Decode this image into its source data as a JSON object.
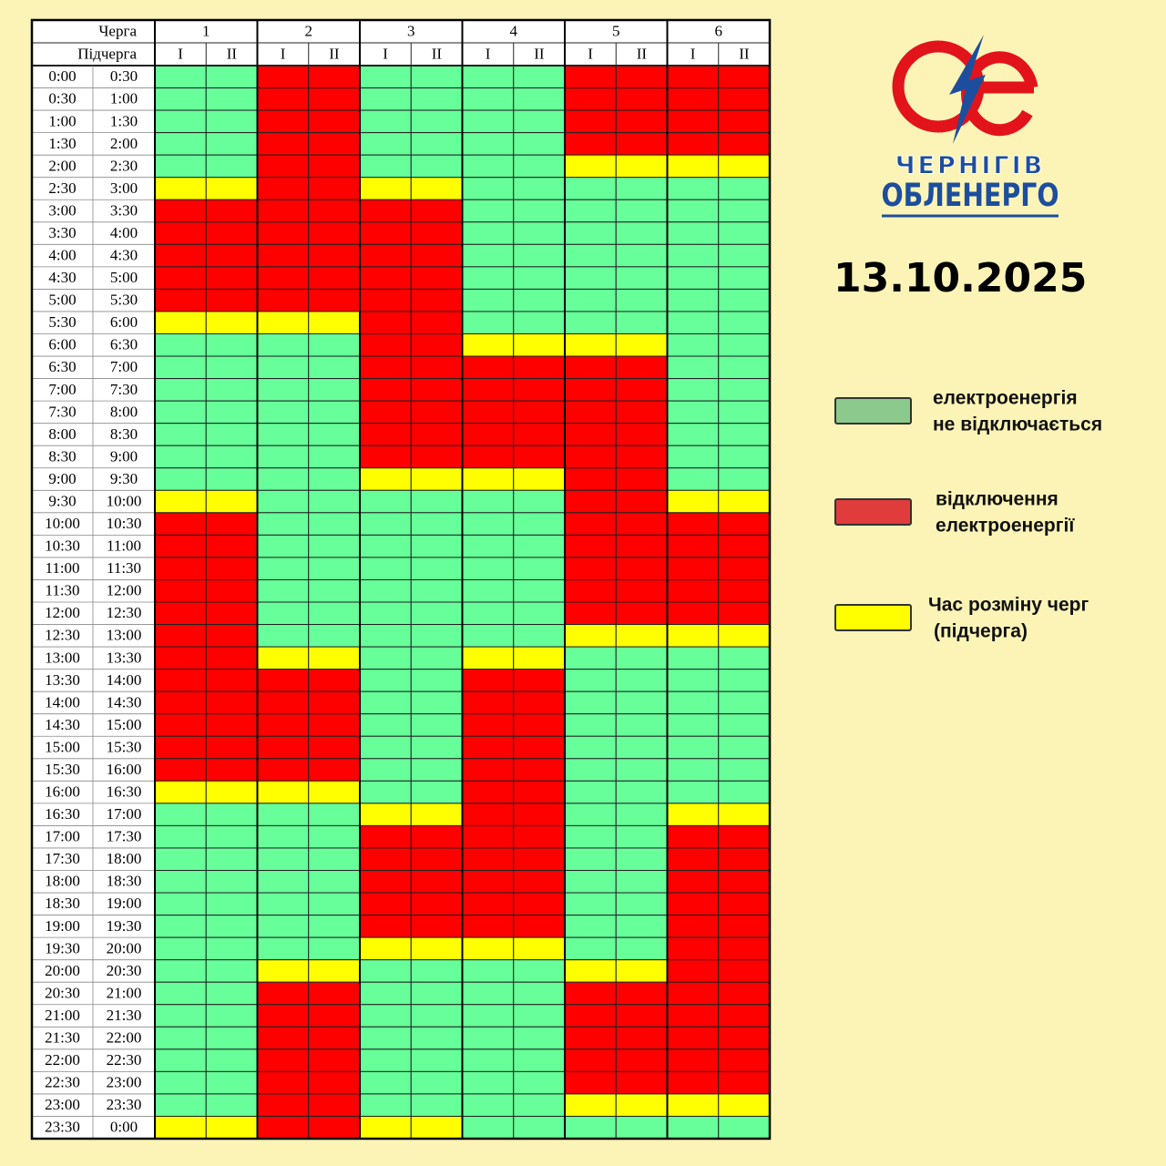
{
  "header": {
    "logo_top": "ЧЕРНІГІВ",
    "logo_bottom": "ОБЛЕНЕРГО",
    "date": "13.10.2025"
  },
  "table": {
    "queue_label": "Черга",
    "subqueue_label": "Підчерга",
    "queues": [
      "1",
      "2",
      "3",
      "4",
      "5",
      "6"
    ],
    "subqueues": [
      "I",
      "II"
    ],
    "rows": [
      {
        "from": "0:00",
        "to": "0:30",
        "cells": [
          "#6f9",
          "#f00",
          "#6f9",
          "#6f9",
          "#f00",
          "#f00"
        ]
      },
      {
        "from": "0:30",
        "to": "1:00",
        "cells": [
          "#6f9",
          "#f00",
          "#6f9",
          "#6f9",
          "#f00",
          "#f00"
        ]
      },
      {
        "from": "1:00",
        "to": "1:30",
        "cells": [
          "#6f9",
          "#f00",
          "#6f9",
          "#6f9",
          "#f00",
          "#f00"
        ]
      },
      {
        "from": "1:30",
        "to": "2:00",
        "cells": [
          "#6f9",
          "#f00",
          "#6f9",
          "#6f9",
          "#f00",
          "#f00"
        ]
      },
      {
        "from": "2:00",
        "to": "2:30",
        "cells": [
          "#6f9",
          "#f00",
          "#6f9",
          "#6f9",
          "#ff0",
          "#ff0"
        ]
      },
      {
        "from": "2:30",
        "to": "3:00",
        "cells": [
          "#ff0",
          "#f00",
          "#ff0",
          "#6f9",
          "#6f9",
          "#6f9"
        ]
      },
      {
        "from": "3:00",
        "to": "3:30",
        "cells": [
          "#f00",
          "#f00",
          "#f00",
          "#6f9",
          "#6f9",
          "#6f9"
        ]
      },
      {
        "from": "3:30",
        "to": "4:00",
        "cells": [
          "#f00",
          "#f00",
          "#f00",
          "#6f9",
          "#6f9",
          "#6f9"
        ]
      },
      {
        "from": "4:00",
        "to": "4:30",
        "cells": [
          "#f00",
          "#f00",
          "#f00",
          "#6f9",
          "#6f9",
          "#6f9"
        ]
      },
      {
        "from": "4:30",
        "to": "5:00",
        "cells": [
          "#f00",
          "#f00",
          "#f00",
          "#6f9",
          "#6f9",
          "#6f9"
        ]
      },
      {
        "from": "5:00",
        "to": "5:30",
        "cells": [
          "#f00",
          "#f00",
          "#f00",
          "#6f9",
          "#6f9",
          "#6f9"
        ]
      },
      {
        "from": "5:30",
        "to": "6:00",
        "cells": [
          "#ff0",
          "#ff0",
          "#f00",
          "#6f9",
          "#6f9",
          "#6f9"
        ]
      },
      {
        "from": "6:00",
        "to": "6:30",
        "cells": [
          "#6f9",
          "#6f9",
          "#f00",
          "#ff0",
          "#ff0",
          "#6f9"
        ]
      },
      {
        "from": "6:30",
        "to": "7:00",
        "cells": [
          "#6f9",
          "#6f9",
          "#f00",
          "#f00",
          "#f00",
          "#6f9"
        ]
      },
      {
        "from": "7:00",
        "to": "7:30",
        "cells": [
          "#6f9",
          "#6f9",
          "#f00",
          "#f00",
          "#f00",
          "#6f9"
        ]
      },
      {
        "from": "7:30",
        "to": "8:00",
        "cells": [
          "#6f9",
          "#6f9",
          "#f00",
          "#f00",
          "#f00",
          "#6f9"
        ]
      },
      {
        "from": "8:00",
        "to": "8:30",
        "cells": [
          "#6f9",
          "#6f9",
          "#f00",
          "#f00",
          "#f00",
          "#6f9"
        ]
      },
      {
        "from": "8:30",
        "to": "9:00",
        "cells": [
          "#6f9",
          "#6f9",
          "#f00",
          "#f00",
          "#f00",
          "#6f9"
        ]
      },
      {
        "from": "9:00",
        "to": "9:30",
        "cells": [
          "#6f9",
          "#6f9",
          "#ff0",
          "#ff0",
          "#f00",
          "#6f9"
        ]
      },
      {
        "from": "9:30",
        "to": "10:00",
        "cells": [
          "#ff0",
          "#6f9",
          "#6f9",
          "#6f9",
          "#f00",
          "#ff0"
        ]
      },
      {
        "from": "10:00",
        "to": "10:30",
        "cells": [
          "#f00",
          "#6f9",
          "#6f9",
          "#6f9",
          "#f00",
          "#f00"
        ]
      },
      {
        "from": "10:30",
        "to": "11:00",
        "cells": [
          "#f00",
          "#6f9",
          "#6f9",
          "#6f9",
          "#f00",
          "#f00"
        ]
      },
      {
        "from": "11:00",
        "to": "11:30",
        "cells": [
          "#f00",
          "#6f9",
          "#6f9",
          "#6f9",
          "#f00",
          "#f00"
        ]
      },
      {
        "from": "11:30",
        "to": "12:00",
        "cells": [
          "#f00",
          "#6f9",
          "#6f9",
          "#6f9",
          "#f00",
          "#f00"
        ]
      },
      {
        "from": "12:00",
        "to": "12:30",
        "cells": [
          "#f00",
          "#6f9",
          "#6f9",
          "#6f9",
          "#f00",
          "#f00"
        ]
      },
      {
        "from": "12:30",
        "to": "13:00",
        "cells": [
          "#f00",
          "#6f9",
          "#6f9",
          "#6f9",
          "#ff0",
          "#ff0"
        ]
      },
      {
        "from": "13:00",
        "to": "13:30",
        "cells": [
          "#f00",
          "#ff0",
          "#6f9",
          "#ff0",
          "#6f9",
          "#6f9"
        ]
      },
      {
        "from": "13:30",
        "to": "14:00",
        "cells": [
          "#f00",
          "#f00",
          "#6f9",
          "#f00",
          "#6f9",
          "#6f9"
        ]
      },
      {
        "from": "14:00",
        "to": "14:30",
        "cells": [
          "#f00",
          "#f00",
          "#6f9",
          "#f00",
          "#6f9",
          "#6f9"
        ]
      },
      {
        "from": "14:30",
        "to": "15:00",
        "cells": [
          "#f00",
          "#f00",
          "#6f9",
          "#f00",
          "#6f9",
          "#6f9"
        ]
      },
      {
        "from": "15:00",
        "to": "15:30",
        "cells": [
          "#f00",
          "#f00",
          "#6f9",
          "#f00",
          "#6f9",
          "#6f9"
        ]
      },
      {
        "from": "15:30",
        "to": "16:00",
        "cells": [
          "#f00",
          "#f00",
          "#6f9",
          "#f00",
          "#6f9",
          "#6f9"
        ]
      },
      {
        "from": "16:00",
        "to": "16:30",
        "cells": [
          "#ff0",
          "#ff0",
          "#6f9",
          "#f00",
          "#6f9",
          "#6f9"
        ]
      },
      {
        "from": "16:30",
        "to": "17:00",
        "cells": [
          "#6f9",
          "#6f9",
          "#ff0",
          "#f00",
          "#6f9",
          "#ff0"
        ]
      },
      {
        "from": "17:00",
        "to": "17:30",
        "cells": [
          "#6f9",
          "#6f9",
          "#f00",
          "#f00",
          "#6f9",
          "#f00"
        ]
      },
      {
        "from": "17:30",
        "to": "18:00",
        "cells": [
          "#6f9",
          "#6f9",
          "#f00",
          "#f00",
          "#6f9",
          "#f00"
        ]
      },
      {
        "from": "18:00",
        "to": "18:30",
        "cells": [
          "#6f9",
          "#6f9",
          "#f00",
          "#f00",
          "#6f9",
          "#f00"
        ]
      },
      {
        "from": "18:30",
        "to": "19:00",
        "cells": [
          "#6f9",
          "#6f9",
          "#f00",
          "#f00",
          "#6f9",
          "#f00"
        ]
      },
      {
        "from": "19:00",
        "to": "19:30",
        "cells": [
          "#6f9",
          "#6f9",
          "#f00",
          "#f00",
          "#6f9",
          "#f00"
        ]
      },
      {
        "from": "19:30",
        "to": "20:00",
        "cells": [
          "#6f9",
          "#6f9",
          "#ff0",
          "#ff0",
          "#6f9",
          "#f00"
        ]
      },
      {
        "from": "20:00",
        "to": "20:30",
        "cells": [
          "#6f9",
          "#ff0",
          "#6f9",
          "#6f9",
          "#ff0",
          "#f00"
        ]
      },
      {
        "from": "20:30",
        "to": "21:00",
        "cells": [
          "#6f9",
          "#f00",
          "#6f9",
          "#6f9",
          "#f00",
          "#f00"
        ]
      },
      {
        "from": "21:00",
        "to": "21:30",
        "cells": [
          "#6f9",
          "#f00",
          "#6f9",
          "#6f9",
          "#f00",
          "#f00"
        ]
      },
      {
        "from": "21:30",
        "to": "22:00",
        "cells": [
          "#6f9",
          "#f00",
          "#6f9",
          "#6f9",
          "#f00",
          "#f00"
        ]
      },
      {
        "from": "22:00",
        "to": "22:30",
        "cells": [
          "#6f9",
          "#f00",
          "#6f9",
          "#6f9",
          "#f00",
          "#f00"
        ]
      },
      {
        "from": "22:30",
        "to": "23:00",
        "cells": [
          "#6f9",
          "#f00",
          "#6f9",
          "#6f9",
          "#f00",
          "#f00"
        ]
      },
      {
        "from": "23:00",
        "to": "23:30",
        "cells": [
          "#6f9",
          "#f00",
          "#6f9",
          "#6f9",
          "#ff0",
          "#ff0"
        ]
      },
      {
        "from": "23:30",
        "to": "0:00",
        "cells": [
          "#ff0",
          "#f00",
          "#ff0",
          "#6f9",
          "#6f9",
          "#6f9"
        ]
      }
    ]
  },
  "legend": [
    {
      "color": "#8cc98c",
      "lines": [
        "електроенергія",
        "не відключається"
      ]
    },
    {
      "color": "#e03c3c",
      "lines": [
        "відключення",
        "електроенергії"
      ]
    },
    {
      "color": "#ffff00",
      "lines": [
        "Час розміну черг",
        "(підчерга)"
      ]
    }
  ]
}
